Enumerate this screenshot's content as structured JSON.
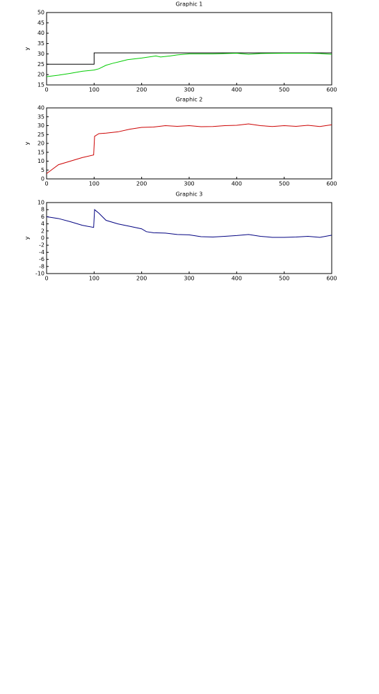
{
  "chart_data": [
    {
      "type": "line",
      "title": "Graphic 1",
      "ylabel": "y",
      "xlim": [
        0,
        600
      ],
      "xticks": [
        0,
        100,
        200,
        300,
        400,
        500,
        600
      ],
      "ylim": [
        15,
        50
      ],
      "yticks": [
        15,
        20,
        25,
        30,
        35,
        40,
        45,
        50
      ],
      "series": [
        {
          "color": "#000000",
          "x": [
            0,
            100,
            100,
            600
          ],
          "values": [
            25,
            25,
            30.5,
            30.5
          ]
        },
        {
          "color": "#00cc00",
          "x": [
            0,
            25,
            50,
            75,
            100,
            110,
            125,
            140,
            155,
            170,
            200,
            230,
            240,
            260,
            275,
            300,
            350,
            400,
            425,
            450,
            500,
            550,
            575,
            600
          ],
          "values": [
            19,
            19.7,
            20.6,
            21.6,
            22.2,
            22.8,
            24.5,
            25.5,
            26.3,
            27.2,
            28,
            29,
            28.5,
            29,
            29.5,
            30,
            30,
            30.3,
            29.8,
            30.2,
            30.3,
            30.3,
            30.2,
            29.8
          ]
        }
      ]
    },
    {
      "type": "line",
      "title": "Graphic 2",
      "ylabel": "y",
      "xlim": [
        0,
        600
      ],
      "xticks": [
        0,
        100,
        200,
        300,
        400,
        500,
        600
      ],
      "ylim": [
        0,
        40
      ],
      "yticks": [
        0,
        5,
        10,
        15,
        20,
        25,
        30,
        35,
        40
      ],
      "series": [
        {
          "color": "#cc0000",
          "x": [
            0,
            10,
            25,
            50,
            75,
            99,
            101,
            110,
            125,
            150,
            175,
            200,
            225,
            250,
            275,
            300,
            325,
            350,
            375,
            400,
            425,
            450,
            475,
            500,
            525,
            550,
            575,
            600
          ],
          "values": [
            3,
            5,
            8,
            10,
            12,
            13.5,
            24,
            25.5,
            25.8,
            26.5,
            28,
            29,
            29.2,
            30,
            29.6,
            30,
            29.4,
            29.5,
            30,
            30.2,
            31,
            30,
            29.5,
            30,
            29.6,
            30.2,
            29.5,
            30.5
          ]
        }
      ]
    },
    {
      "type": "line",
      "title": "Graphic 3",
      "ylabel": "y",
      "xlim": [
        0,
        600
      ],
      "xticks": [
        0,
        100,
        200,
        300,
        400,
        500,
        600
      ],
      "ylim": [
        -10,
        10
      ],
      "yticks": [
        -10,
        -8,
        -6,
        -4,
        -2,
        0,
        2,
        4,
        6,
        8,
        10
      ],
      "series": [
        {
          "color": "#000080",
          "x": [
            0,
            25,
            50,
            75,
            99,
            101,
            110,
            125,
            150,
            175,
            200,
            210,
            225,
            250,
            275,
            300,
            325,
            350,
            375,
            400,
            425,
            450,
            475,
            500,
            525,
            550,
            575,
            600
          ],
          "values": [
            6,
            5.5,
            4.6,
            3.6,
            3,
            8,
            7,
            5,
            4,
            3.3,
            2.6,
            1.8,
            1.5,
            1.4,
            1,
            0.9,
            0.4,
            0.3,
            0.5,
            0.7,
            1,
            0.5,
            0.2,
            0.2,
            0.3,
            0.5,
            0.2,
            0.8
          ]
        }
      ]
    }
  ]
}
